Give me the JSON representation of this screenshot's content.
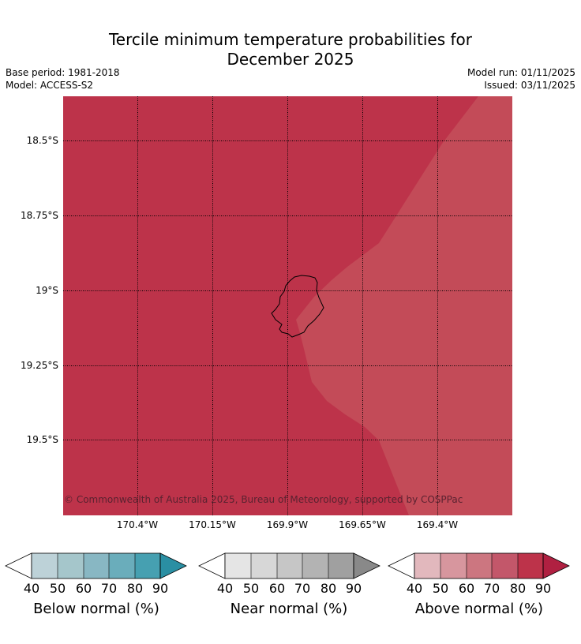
{
  "title": {
    "line1": "Tercile minimum temperature probabilities for",
    "line2": "December 2025"
  },
  "meta": {
    "base_period": "Base period: 1981-2018",
    "model": "Model: ACCESS-S2",
    "model_run": "Model run: 01/11/2025",
    "issued": "Issued: 03/11/2025"
  },
  "map": {
    "lat_labels": [
      "18.5°S",
      "18.75°S",
      "19°S",
      "19.25°S",
      "19.5°S"
    ],
    "lon_labels": [
      "170.4°W",
      "170.15°W",
      "169.9°W",
      "169.65°W",
      "169.4°W"
    ],
    "copyright": "© Commonwealth of Australia 2025, Bureau of Meteorology, supported by COSPPac",
    "colors": {
      "above_80_90": "#bd334a",
      "above_70_80": "#c34b58"
    }
  },
  "legend": {
    "ticks": [
      "40",
      "50",
      "60",
      "70",
      "80",
      "90"
    ],
    "below": {
      "title": "Below normal (%)",
      "colors": [
        "#bdd2d8",
        "#a5c6cb",
        "#88b7c3",
        "#6aadbb",
        "#46a0b1",
        "#2a8fa3"
      ]
    },
    "near": {
      "title": "Near normal (%)",
      "colors": [
        "#e5e5e5",
        "#d7d7d7",
        "#c6c6c6",
        "#b3b3b3",
        "#a0a0a0",
        "#898989"
      ]
    },
    "above": {
      "title": "Above normal (%)",
      "colors": [
        "#e2b8bd",
        "#d7969e",
        "#cc7680",
        "#c3576a",
        "#bd334a",
        "#b02041"
      ]
    }
  }
}
